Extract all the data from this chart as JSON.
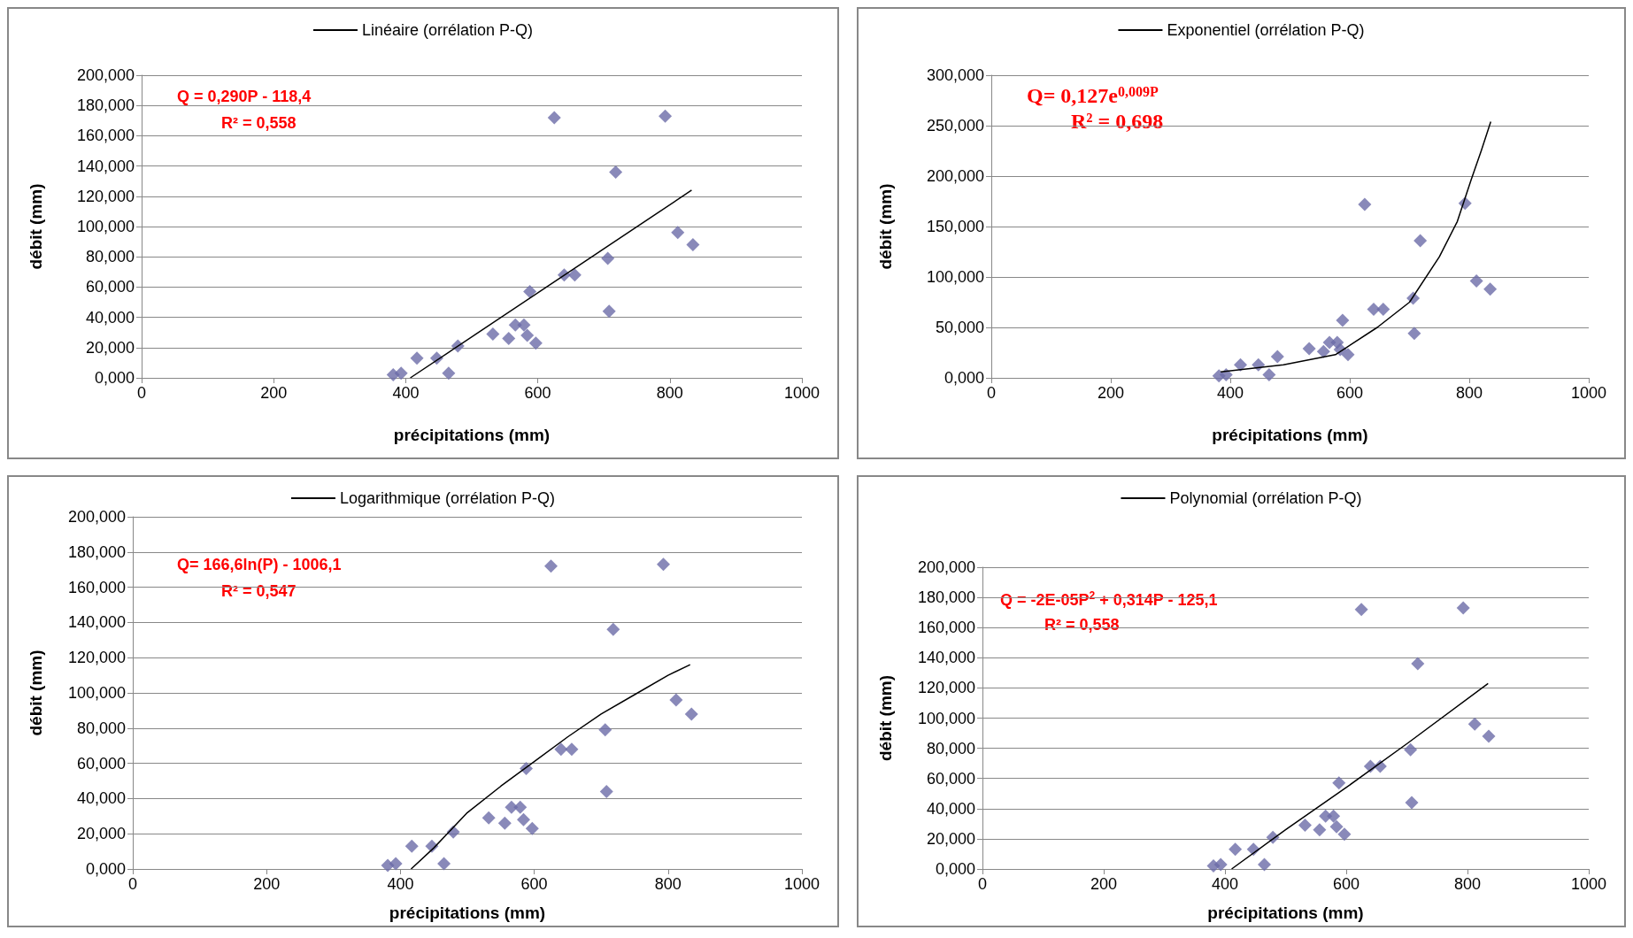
{
  "chart_data": [
    {
      "type": "scatter",
      "xlabel": "précipitations (mm)",
      "ylabel": "débit (mm)",
      "legend": "top",
      "grid": "y",
      "marker": "diamond",
      "xlim": [
        0,
        1000
      ],
      "xticks": [
        0,
        200,
        400,
        600,
        800,
        1000
      ],
      "ylim": [
        0,
        200
      ],
      "yticks": [
        {
          "value": 0,
          "label": "0,000"
        },
        {
          "value": 20,
          "label": "20,000"
        },
        {
          "value": 40,
          "label": "40,000"
        },
        {
          "value": 60,
          "label": "60,000"
        },
        {
          "value": 80,
          "label": "80,000"
        },
        {
          "value": 100,
          "label": "100,000"
        },
        {
          "value": 120,
          "label": "120,000"
        },
        {
          "value": 140,
          "label": "140,000"
        },
        {
          "value": 160,
          "label": "160,000"
        },
        {
          "value": 180,
          "label": "180,000"
        },
        {
          "value": 200,
          "label": "200,000"
        }
      ],
      "annotations": [
        "Q = 0,290P - 118,4",
        "R² = 0,558"
      ],
      "series": [
        {
          "color": "#6b6ba8",
          "x": [
            381,
            393,
            417,
            447,
            465,
            479,
            532,
            556,
            566,
            579,
            584,
            597,
            588,
            625,
            640,
            656,
            706,
            708,
            718,
            793,
            812,
            835
          ],
          "values": [
            2,
            3,
            13,
            13,
            3,
            21,
            29,
            26,
            35,
            35,
            28,
            23,
            57,
            172,
            68,
            68,
            79,
            44,
            136,
            173,
            96,
            88
          ]
        },
        {
          "type": "line",
          "name": "Linéaire (orrélation P-Q)",
          "color": "#000000",
          "line_style": "solid",
          "marker": "none",
          "x": [
            407,
            833
          ],
          "values": [
            0,
            124
          ]
        }
      ]
    },
    {
      "type": "scatter",
      "xlabel": "précipitations (mm)",
      "ylabel": "débit (mm)",
      "legend": "top",
      "grid": "y",
      "marker": "diamond",
      "xlim": [
        0,
        1000
      ],
      "xticks": [
        0,
        200,
        400,
        600,
        800,
        1000
      ],
      "ylim": [
        0,
        300
      ],
      "yticks": [
        {
          "value": 0,
          "label": "0,000"
        },
        {
          "value": 50,
          "label": "50,000"
        },
        {
          "value": 100,
          "label": "100,000"
        },
        {
          "value": 150,
          "label": "150,000"
        },
        {
          "value": 200,
          "label": "200,000"
        },
        {
          "value": 250,
          "label": "250,000"
        },
        {
          "value": 300,
          "label": "300,000"
        }
      ],
      "annotations": [
        "Q= 0,127e$^{0,009P}$",
        "R² = 0,698"
      ],
      "series": [
        {
          "color": "#6b6ba8",
          "x": [
            381,
            393,
            417,
            447,
            465,
            479,
            532,
            556,
            566,
            579,
            584,
            597,
            588,
            625,
            640,
            656,
            706,
            708,
            718,
            793,
            812,
            835
          ],
          "values": [
            2,
            3,
            13,
            13,
            3,
            21,
            29,
            26,
            35,
            35,
            28,
            23,
            57,
            172,
            68,
            68,
            79,
            44,
            136,
            173,
            96,
            88
          ]
        },
        {
          "type": "line",
          "name": "Exponentiel (orrélation P-Q)",
          "color": "#000000",
          "line_style": "solid",
          "marker": "none",
          "x": [
            384,
            489,
            576,
            646,
            700,
            750,
            780,
            803,
            820,
            836
          ],
          "values": [
            6,
            13,
            23,
            50,
            75,
            120,
            155,
            196,
            225,
            254
          ]
        }
      ]
    },
    {
      "type": "scatter",
      "xlabel": "précipitations (mm)",
      "ylabel": "débit (mm)",
      "legend": "top",
      "grid": "y",
      "marker": "diamond",
      "xlim": [
        0,
        1000
      ],
      "xticks": [
        0,
        200,
        400,
        600,
        800,
        1000
      ],
      "ylim": [
        0,
        200
      ],
      "yticks": [
        {
          "value": 0,
          "label": "0,000"
        },
        {
          "value": 20,
          "label": "20,000"
        },
        {
          "value": 40,
          "label": "40,000"
        },
        {
          "value": 60,
          "label": "60,000"
        },
        {
          "value": 80,
          "label": "80,000"
        },
        {
          "value": 100,
          "label": "100,000"
        },
        {
          "value": 120,
          "label": "120,000"
        },
        {
          "value": 140,
          "label": "140,000"
        },
        {
          "value": 160,
          "label": "160,000"
        },
        {
          "value": 180,
          "label": "180,000"
        },
        {
          "value": 200,
          "label": "200,000"
        }
      ],
      "annotations": [
        "Q= 166,6ln(P) - 1006,1",
        "R² = 0,547"
      ],
      "series": [
        {
          "color": "#6b6ba8",
          "x": [
            381,
            393,
            417,
            447,
            465,
            479,
            532,
            556,
            566,
            579,
            584,
            597,
            588,
            625,
            640,
            656,
            706,
            708,
            718,
            793,
            812,
            835
          ],
          "values": [
            2,
            3,
            13,
            13,
            3,
            21,
            29,
            26,
            35,
            35,
            28,
            23,
            57,
            172,
            68,
            68,
            79,
            44,
            136,
            173,
            96,
            88
          ]
        },
        {
          "type": "line",
          "name": "Logarithmique (orrélation P-Q)",
          "color": "#000000",
          "line_style": "solid",
          "marker": "none",
          "x": [
            416,
            450,
            500,
            550,
            600,
            650,
            700,
            750,
            800,
            833
          ],
          "values": [
            0,
            12,
            32,
            47,
            61,
            75,
            88,
            99,
            110,
            116
          ]
        }
      ]
    },
    {
      "type": "scatter",
      "xlabel": "précipitations (mm)",
      "ylabel": "débit (mm)",
      "legend": "top",
      "grid": "y",
      "marker": "diamond",
      "xlim": [
        0,
        1000
      ],
      "xticks": [
        0,
        200,
        400,
        600,
        800,
        1000
      ],
      "ylim": [
        0,
        200
      ],
      "yticks": [
        {
          "value": 0,
          "label": "0,000"
        },
        {
          "value": 20,
          "label": "20,000"
        },
        {
          "value": 40,
          "label": "40,000"
        },
        {
          "value": 60,
          "label": "60,000"
        },
        {
          "value": 80,
          "label": "80,000"
        },
        {
          "value": 100,
          "label": "100,000"
        },
        {
          "value": 120,
          "label": "120,000"
        },
        {
          "value": 140,
          "label": "140,000"
        },
        {
          "value": 160,
          "label": "160,000"
        },
        {
          "value": 180,
          "label": "180,000"
        },
        {
          "value": 200,
          "label": "200,000"
        }
      ],
      "annotations": [
        "Q = -2E-05P$^{2}$ + 0,314P - 125,1",
        "R² = 0,558"
      ],
      "series": [
        {
          "color": "#6b6ba8",
          "x": [
            381,
            393,
            417,
            447,
            465,
            479,
            532,
            556,
            566,
            579,
            584,
            597,
            588,
            625,
            640,
            656,
            706,
            708,
            718,
            793,
            812,
            835
          ],
          "values": [
            2,
            3,
            13,
            13,
            3,
            21,
            29,
            26,
            35,
            35,
            28,
            23,
            57,
            172,
            68,
            68,
            79,
            44,
            136,
            173,
            96,
            88
          ]
        },
        {
          "type": "line",
          "name": "Polynomial (orrélation P-Q)",
          "color": "#000000",
          "line_style": "solid",
          "marker": "none",
          "x": [
            411,
            500,
            600,
            700,
            834
          ],
          "values": [
            0,
            26,
            54,
            83,
            123
          ]
        }
      ]
    }
  ]
}
